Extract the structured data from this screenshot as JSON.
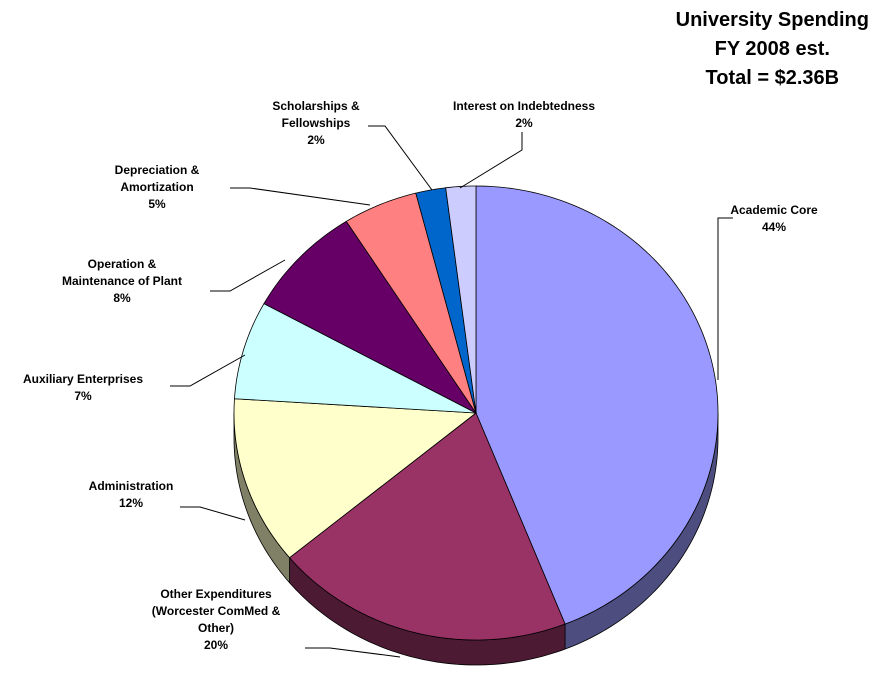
{
  "chart_data": {
    "type": "pie",
    "title": "University Spending\nFY 2008 est.\nTotal = $2.36B",
    "categories": [
      "Academic Core",
      "Other Expenditures\n(Worcester ComMed &\nOther)",
      "Administration",
      "Auxiliary Enterprises",
      "Operation &\nMaintenance of Plant",
      "Depreciation &\nAmortization",
      "Scholarships &\nFellowships",
      "Interest on Indebtedness"
    ],
    "values": [
      44,
      20,
      12,
      7,
      8,
      5,
      2,
      2
    ],
    "value_labels": [
      "44%",
      "20%",
      "12%",
      "7%",
      "8%",
      "5%",
      "2%",
      "2%"
    ],
    "colors": [
      "#9999ff",
      "#993366",
      "#ffffcc",
      "#ccffff",
      "#660066",
      "#ff8080",
      "#0066cc",
      "#ccccff"
    ]
  }
}
